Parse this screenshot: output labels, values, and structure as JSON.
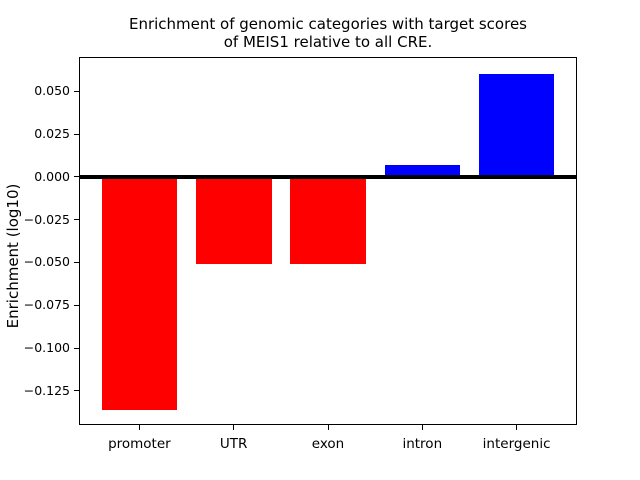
{
  "title": {
    "line1": "Enrichment of genomic categories with target scores",
    "line2": "of MEIS1 relative to all CRE."
  },
  "chart_data": {
    "type": "bar",
    "title": "Enrichment of genomic categories with target scores of MEIS1 relative to all CRE.",
    "xlabel": "",
    "ylabel": "Enrichment (log10)",
    "categories": [
      "promoter",
      "UTR",
      "exon",
      "intron",
      "intergenic"
    ],
    "values": [
      -0.136,
      -0.051,
      -0.051,
      0.007,
      0.06
    ],
    "bar_width": 0.8,
    "color_rule": {
      "positive": "#0000ff",
      "negative": "#ff0000"
    },
    "yticks": [
      0.05,
      0.025,
      0.0,
      -0.025,
      -0.05,
      -0.075,
      -0.1,
      -0.125
    ],
    "ytick_labels": [
      "0.050",
      "0.025",
      "0.000",
      "−0.025",
      "−0.050",
      "−0.075",
      "−0.100",
      "−0.125"
    ],
    "ylim": [
      -0.145,
      0.07
    ],
    "xlim": [
      -0.64,
      4.64
    ],
    "grid": false,
    "zero_line": true,
    "background": "#ffffff"
  }
}
